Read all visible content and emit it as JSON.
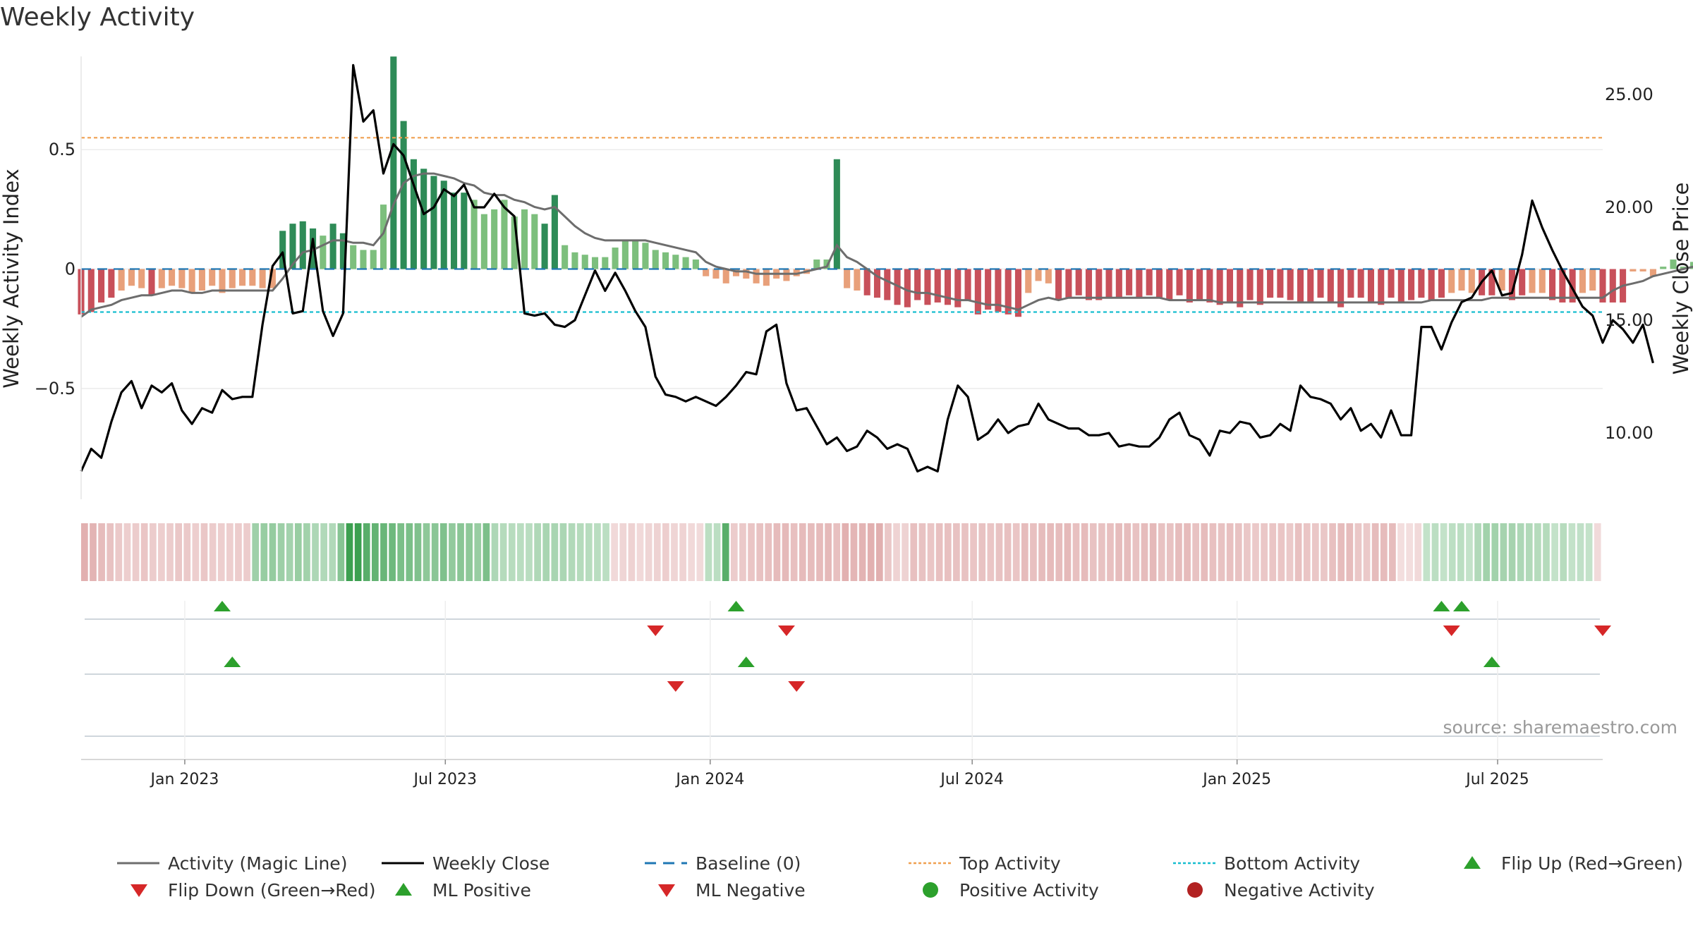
{
  "chart_data": {
    "type": "bar",
    "title": "Weekly Activity",
    "y_left_label": "Weekly Activity Index",
    "y_right_label": "Weekly Close Price",
    "y_left_ticks": [
      "0.5",
      "0",
      "−0.5"
    ],
    "y_right_ticks": [
      "25.00",
      "20.00",
      "15.00",
      "10.00"
    ],
    "y_left_lim": [
      -0.97,
      0.92
    ],
    "y_right_lim": [
      7.0,
      27.0
    ],
    "x_ticks": [
      "Jan 2023",
      "Jul 2023",
      "Jan 2024",
      "Jul 2024",
      "Jan 2025",
      "Jul 2025"
    ],
    "top_activity": 0.55,
    "bottom_activity": -0.18,
    "source": "source: sharemaestro.com",
    "series": [
      {
        "name": "Weekly Activity Index",
        "start_date": "2022-10-21",
        "values": [
          -0.19,
          -0.18,
          -0.14,
          -0.12,
          -0.09,
          -0.07,
          -0.08,
          -0.11,
          -0.08,
          -0.07,
          -0.08,
          -0.1,
          -0.09,
          -0.07,
          -0.1,
          -0.08,
          -0.07,
          -0.07,
          -0.08,
          -0.08,
          0.16,
          0.19,
          0.2,
          0.17,
          0.14,
          0.19,
          0.15,
          0.1,
          0.08,
          0.08,
          0.27,
          0.89,
          0.62,
          0.46,
          0.42,
          0.39,
          0.37,
          0.32,
          0.32,
          0.29,
          0.23,
          0.25,
          0.29,
          0.22,
          0.25,
          0.23,
          0.19,
          0.31,
          0.1,
          0.07,
          0.06,
          0.05,
          0.05,
          0.09,
          0.12,
          0.12,
          0.11,
          0.08,
          0.07,
          0.06,
          0.05,
          0.04,
          -0.03,
          -0.04,
          -0.06,
          -0.03,
          -0.04,
          -0.06,
          -0.07,
          -0.04,
          -0.05,
          -0.03,
          -0.02,
          0.04,
          0.04,
          0.46,
          -0.08,
          -0.09,
          -0.11,
          -0.12,
          -0.13,
          -0.15,
          -0.16,
          -0.13,
          -0.15,
          -0.14,
          -0.15,
          -0.16,
          -0.13,
          -0.19,
          -0.17,
          -0.18,
          -0.19,
          -0.2,
          -0.1,
          -0.05,
          -0.06,
          -0.13,
          -0.12,
          -0.11,
          -0.13,
          -0.13,
          -0.12,
          -0.12,
          -0.11,
          -0.12,
          -0.11,
          -0.12,
          -0.13,
          -0.11,
          -0.14,
          -0.13,
          -0.14,
          -0.15,
          -0.14,
          -0.16,
          -0.13,
          -0.15,
          -0.12,
          -0.12,
          -0.13,
          -0.14,
          -0.14,
          -0.12,
          -0.14,
          -0.16,
          -0.12,
          -0.12,
          -0.14,
          -0.15,
          -0.12,
          -0.14,
          -0.13,
          -0.12,
          -0.13,
          -0.12,
          -0.1,
          -0.09,
          -0.1,
          -0.11,
          -0.11,
          -0.09,
          -0.13,
          -0.11,
          -0.1,
          -0.1,
          -0.13,
          -0.14,
          -0.14,
          -0.1,
          -0.09,
          -0.14,
          -0.14,
          -0.14,
          -0.01,
          -0.01,
          -0.03,
          0.01,
          0.04,
          0.01,
          0.03,
          0.04,
          0.01,
          0.08,
          0.15,
          0.15,
          0.13,
          0.13,
          0.1,
          0.08,
          0.07,
          0.07,
          0.01,
          0.06,
          0.01,
          0.02,
          0.01,
          -0.02
        ]
      },
      {
        "name": "Activity (Magic Line)",
        "start_date": "2022-10-21",
        "values": [
          -0.2,
          -0.17,
          -0.16,
          -0.15,
          -0.13,
          -0.12,
          -0.11,
          -0.11,
          -0.1,
          -0.09,
          -0.09,
          -0.1,
          -0.1,
          -0.09,
          -0.09,
          -0.09,
          -0.09,
          -0.09,
          -0.09,
          -0.09,
          -0.04,
          0.02,
          0.07,
          0.08,
          0.1,
          0.12,
          0.12,
          0.11,
          0.11,
          0.1,
          0.15,
          0.27,
          0.36,
          0.39,
          0.4,
          0.4,
          0.39,
          0.38,
          0.36,
          0.35,
          0.32,
          0.31,
          0.31,
          0.29,
          0.28,
          0.26,
          0.25,
          0.26,
          0.22,
          0.18,
          0.15,
          0.13,
          0.12,
          0.12,
          0.12,
          0.12,
          0.12,
          0.11,
          0.1,
          0.09,
          0.08,
          0.07,
          0.03,
          0.01,
          0.0,
          -0.01,
          -0.01,
          -0.02,
          -0.02,
          -0.02,
          -0.02,
          -0.02,
          -0.01,
          0.0,
          0.01,
          0.1,
          0.05,
          0.03,
          0.0,
          -0.03,
          -0.05,
          -0.07,
          -0.09,
          -0.1,
          -0.1,
          -0.11,
          -0.12,
          -0.13,
          -0.13,
          -0.14,
          -0.15,
          -0.15,
          -0.16,
          -0.17,
          -0.15,
          -0.13,
          -0.12,
          -0.13,
          -0.12,
          -0.12,
          -0.12,
          -0.12,
          -0.12,
          -0.12,
          -0.12,
          -0.12,
          -0.12,
          -0.12,
          -0.13,
          -0.13,
          -0.13,
          -0.13,
          -0.13,
          -0.14,
          -0.14,
          -0.14,
          -0.14,
          -0.14,
          -0.14,
          -0.14,
          -0.14,
          -0.14,
          -0.14,
          -0.14,
          -0.14,
          -0.14,
          -0.14,
          -0.14,
          -0.14,
          -0.14,
          -0.14,
          -0.14,
          -0.14,
          -0.14,
          -0.13,
          -0.13,
          -0.13,
          -0.13,
          -0.13,
          -0.13,
          -0.12,
          -0.12,
          -0.12,
          -0.12,
          -0.12,
          -0.12,
          -0.12,
          -0.12,
          -0.12,
          -0.12,
          -0.12,
          -0.12,
          -0.09,
          -0.07,
          -0.06,
          -0.05,
          -0.03,
          -0.02,
          -0.01,
          0.0,
          0.01,
          0.02,
          0.04,
          0.07,
          0.09,
          0.1,
          0.1,
          0.1,
          0.09,
          0.08,
          0.08,
          0.07,
          0.06,
          0.05,
          0.04,
          0.03
        ]
      },
      {
        "name": "Weekly Close",
        "start_date": "2022-10-21",
        "values": [
          8.3,
          9.3,
          8.9,
          10.5,
          11.8,
          12.3,
          11.1,
          12.1,
          11.8,
          12.2,
          11.0,
          10.4,
          11.1,
          10.9,
          11.9,
          11.5,
          11.6,
          11.6,
          14.8,
          17.4,
          18.0,
          15.3,
          15.4,
          18.6,
          15.4,
          14.3,
          15.3,
          26.3,
          23.8,
          24.3,
          21.5,
          22.8,
          22.3,
          21.0,
          19.7,
          20.0,
          20.8,
          20.5,
          21.0,
          20.0,
          20.0,
          20.6,
          20.0,
          19.6,
          15.3,
          15.2,
          15.3,
          14.8,
          14.7,
          15.0,
          16.1,
          17.2,
          16.3,
          17.1,
          16.3,
          15.4,
          14.7,
          12.5,
          11.7,
          11.6,
          11.4,
          11.6,
          11.4,
          11.2,
          11.6,
          12.1,
          12.7,
          12.6,
          14.5,
          14.8,
          12.2,
          11.0,
          11.1,
          10.3,
          9.5,
          9.8,
          9.2,
          9.4,
          10.1,
          9.8,
          9.3,
          9.5,
          9.3,
          8.3,
          8.5,
          8.3,
          10.6,
          12.1,
          11.6,
          9.7,
          10.0,
          10.6,
          10.0,
          10.3,
          10.4,
          11.3,
          10.6,
          10.4,
          10.2,
          10.2,
          9.9,
          9.9,
          10.0,
          9.4,
          9.5,
          9.4,
          9.4,
          9.8,
          10.6,
          10.9,
          9.9,
          9.7,
          9.0,
          10.1,
          10.0,
          10.5,
          10.4,
          9.8,
          9.9,
          10.4,
          10.1,
          12.1,
          11.6,
          11.5,
          11.3,
          10.6,
          11.1,
          10.1,
          10.4,
          9.8,
          11.0,
          9.9,
          9.9,
          14.7,
          14.7,
          13.7,
          14.9,
          15.8,
          16.0,
          16.7,
          17.2,
          16.1,
          16.2,
          17.9,
          20.3,
          19.1,
          18.1,
          17.2,
          16.4,
          15.6,
          15.2,
          14.0,
          15.0,
          14.6,
          14.0,
          14.8,
          13.1
        ]
      }
    ],
    "events": {
      "flip_up": [
        "2023-01-27",
        "2024-01-19",
        "2025-05-23",
        "2025-06-06"
      ],
      "flip_down": [
        "2023-11-24",
        "2024-02-23",
        "2025-05-30",
        "2025-09-12"
      ],
      "ml_positive": [
        "2023-02-03",
        "2024-01-26",
        "2025-06-27"
      ],
      "ml_negative": [
        "2023-12-08",
        "2024-03-01"
      ]
    },
    "legend": [
      {
        "label": "Activity (Magic Line)",
        "marker": "line",
        "color": "#6d6d6d"
      },
      {
        "label": "Weekly Close",
        "marker": "line",
        "color": "#000000"
      },
      {
        "label": "Baseline (0)",
        "marker": "dashed",
        "color": "#1f77b4"
      },
      {
        "label": "Top Activity",
        "marker": "dotted",
        "color": "#f0a050"
      },
      {
        "label": "Bottom Activity",
        "marker": "dotted",
        "color": "#17becf"
      },
      {
        "label": "Flip Up (Red→Green)",
        "marker": "triangle-up",
        "color": "#2ca02c"
      },
      {
        "label": "Flip Down (Green→Red)",
        "marker": "triangle-down",
        "color": "#d62728"
      },
      {
        "label": "ML Positive",
        "marker": "triangle-up",
        "color": "#2ca02c"
      },
      {
        "label": "ML Negative",
        "marker": "triangle-down",
        "color": "#d62728"
      },
      {
        "label": "Positive Activity",
        "marker": "circle",
        "color": "#2ca02c"
      },
      {
        "label": "Negative Activity",
        "marker": "circle",
        "color": "#b22222"
      }
    ],
    "colors": {
      "bar_pos_strong": "#2e8b57",
      "bar_pos_light": "#7dbf7d",
      "bar_neg_strong": "#c8505a",
      "bar_neg_light": "#e8a07a",
      "magic_line": "#6d6d6d",
      "close_line": "#000000",
      "baseline": "#1f77b4",
      "top_line": "#f0a050",
      "bottom_line": "#17becf",
      "up_marker": "#2ca02c",
      "down_marker": "#d62728"
    }
  }
}
